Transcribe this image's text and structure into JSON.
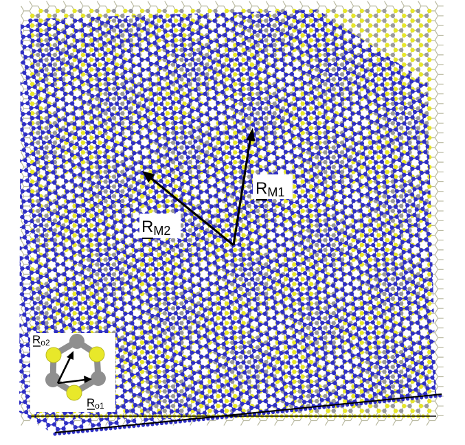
{
  "figure": {
    "moire_vectors": [
      {
        "id": "M1",
        "label_main": "R",
        "label_sub": "M1"
      },
      {
        "id": "M2",
        "label_main": "R",
        "label_sub": "M2"
      }
    ],
    "inset": {
      "vectors": [
        {
          "id": "o1",
          "label_main": "R",
          "label_sub": "o1"
        },
        {
          "id": "o2",
          "label_main": "R",
          "label_sub": "o2"
        }
      ]
    },
    "colors": {
      "top_layer_atom": "#2f2fc4",
      "top_layer_bond": "#3a3acc",
      "bottom_atom_a": "#e6e629",
      "bottom_atom_b": "#9a9a9a",
      "arrow": "#000000",
      "background": "#ffffff"
    }
  }
}
